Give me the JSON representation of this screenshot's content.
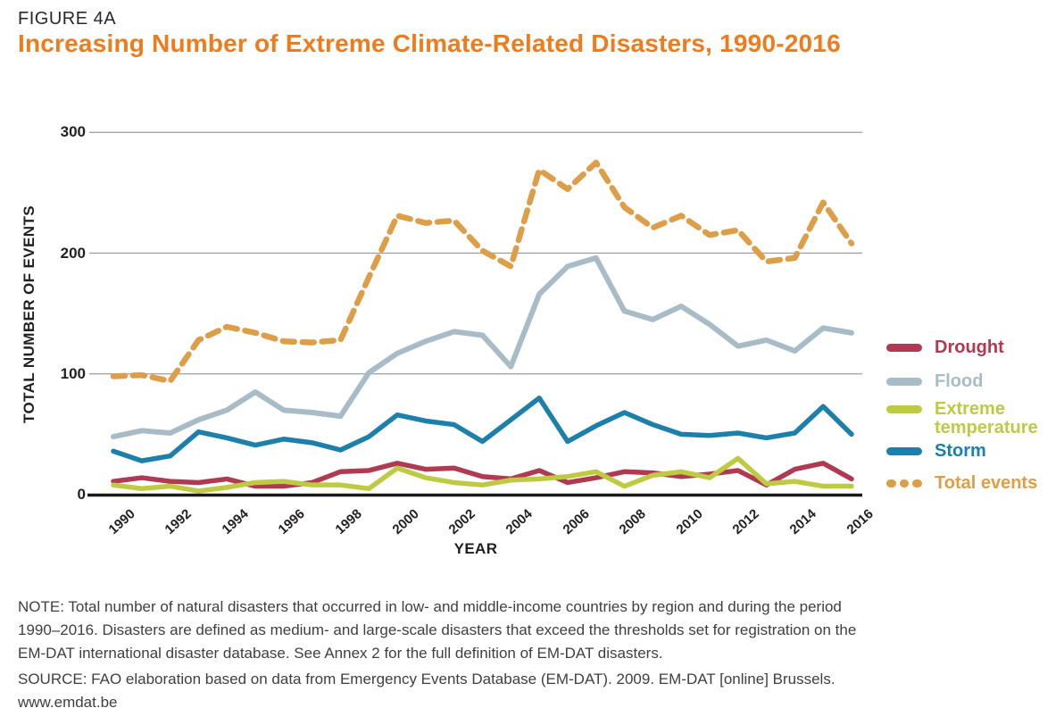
{
  "figure_label": "FIGURE 4A",
  "title": "Increasing Number of Extreme Climate-Related Disasters, 1990-2016",
  "chart_data": {
    "type": "line",
    "title": "Increasing Number of Extreme Climate-Related Disasters, 1990-2016",
    "xlabel": "YEAR",
    "ylabel": "TOTAL NUMBER OF EVENTS",
    "ylim": [
      0,
      300
    ],
    "y_ticks": [
      0,
      100,
      200,
      300
    ],
    "grid": "horizontal",
    "legend_position": "right",
    "x": [
      1990,
      1991,
      1992,
      1993,
      1994,
      1995,
      1996,
      1997,
      1998,
      1999,
      2000,
      2001,
      2002,
      2003,
      2004,
      2005,
      2006,
      2007,
      2008,
      2009,
      2010,
      2011,
      2012,
      2013,
      2014,
      2015,
      2016
    ],
    "x_tick_labels": [
      "1990",
      "1992",
      "1994",
      "1996",
      "1998",
      "2000",
      "2002",
      "2004",
      "2006",
      "2008",
      "2010",
      "2012",
      "2014",
      "2016"
    ],
    "series": [
      {
        "name": "Drought",
        "color": "#b03a52",
        "style": "solid",
        "values": [
          11,
          14,
          11,
          10,
          13,
          7,
          7,
          10,
          19,
          20,
          26,
          21,
          22,
          15,
          13,
          20,
          10,
          14,
          19,
          18,
          15,
          17,
          20,
          8,
          21,
          26,
          13
        ]
      },
      {
        "name": "Flood",
        "color": "#a7bcc6",
        "style": "solid",
        "values": [
          48,
          53,
          51,
          62,
          70,
          85,
          70,
          68,
          65,
          101,
          117,
          127,
          135,
          132,
          106,
          166,
          189,
          196,
          152,
          145,
          156,
          141,
          123,
          128,
          119,
          138,
          134
        ]
      },
      {
        "name": "Extreme temperature",
        "color": "#bfca43",
        "style": "solid",
        "values": [
          8,
          5,
          7,
          3,
          6,
          10,
          11,
          8,
          8,
          5,
          22,
          14,
          10,
          8,
          12,
          13,
          15,
          19,
          7,
          16,
          19,
          14,
          30,
          9,
          11,
          7,
          7
        ]
      },
      {
        "name": "Storm",
        "color": "#1c80aa",
        "style": "solid",
        "values": [
          36,
          28,
          32,
          52,
          47,
          41,
          46,
          43,
          37,
          48,
          66,
          61,
          58,
          44,
          62,
          80,
          44,
          57,
          68,
          58,
          50,
          49,
          51,
          47,
          51,
          73,
          50
        ]
      },
      {
        "name": "Total events",
        "color": "#dd9e47",
        "style": "dashed",
        "values": [
          98,
          99,
          94,
          128,
          139,
          134,
          127,
          126,
          128,
          180,
          231,
          225,
          227,
          202,
          189,
          269,
          253,
          275,
          238,
          221,
          231,
          215,
          219,
          193,
          196,
          242,
          208
        ]
      }
    ]
  },
  "footnote": {
    "note_lines": [
      "NOTE: Total number of natural disasters that occurred in low- and middle-income countries by region and during the period",
      "1990–2016. Disasters are defined as medium- and large-scale disasters that exceed the thresholds set for registration on the",
      "EM-DAT international disaster database. See Annex 2 for the full definition of EM-DAT disasters."
    ],
    "source_lines": [
      "SOURCE: FAO elaboration based on data from Emergency Events Database (EM-DAT). 2009. EM-DAT [online] Brussels.",
      "www.emdat.be"
    ]
  }
}
